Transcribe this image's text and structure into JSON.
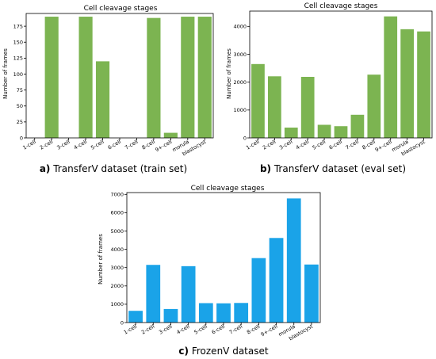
{
  "colors": {
    "green_bar": "#7cb451",
    "blue_bar": "#1aa3e8"
  },
  "captions": [
    {
      "letter": "a)",
      "text": " TransferV dataset (train set)"
    },
    {
      "letter": "b)",
      "text": " TransferV dataset (eval set)"
    },
    {
      "letter": "c)",
      "text": " FrozenV dataset"
    }
  ],
  "chart_data": [
    {
      "type": "bar",
      "title": "Cell cleavage stages",
      "xlabel": "",
      "ylabel": "Number of frames",
      "categories": [
        "1-cell",
        "2-cell",
        "3-cell",
        "4-cell",
        "5-cell",
        "6-cell",
        "7-cell",
        "8-cell",
        "9+-cell",
        "morula",
        "blastocyst"
      ],
      "values": [
        0,
        190,
        0,
        190,
        120,
        0,
        0,
        188,
        8,
        190,
        190
      ],
      "ylim": [
        0,
        195
      ],
      "yticks": [
        0,
        25,
        50,
        75,
        100,
        125,
        150,
        175
      ],
      "color": "#7cb451",
      "grid": false
    },
    {
      "type": "bar",
      "title": "Cell cleavage stages",
      "xlabel": "",
      "ylabel": "Number of frames",
      "categories": [
        "1-cell",
        "2-cell",
        "3-cell",
        "4-cell",
        "5-cell",
        "6-cell",
        "7-cell",
        "8-cell",
        "9+-cell",
        "morula",
        "blastocyst"
      ],
      "values": [
        2650,
        2210,
        370,
        2190,
        470,
        420,
        830,
        2270,
        4360,
        3900,
        3820
      ],
      "ylim": [
        0,
        4550
      ],
      "yticks": [
        0,
        1000,
        2000,
        3000,
        4000
      ],
      "color": "#7cb451",
      "grid": false
    },
    {
      "type": "bar",
      "title": "Cell cleavage stages",
      "xlabel": "",
      "ylabel": "Number of frames",
      "categories": [
        "1-cell",
        "2-cell",
        "3-cell",
        "4-cell",
        "5-cell",
        "6-cell",
        "7-cell",
        "8-cell",
        "9+-cell",
        "morula",
        "blastocyst"
      ],
      "values": [
        640,
        3150,
        740,
        3080,
        1060,
        1050,
        1070,
        3520,
        4620,
        6780,
        3170
      ],
      "ylim": [
        0,
        7100
      ],
      "yticks": [
        0,
        1000,
        2000,
        3000,
        4000,
        5000,
        6000,
        7000
      ],
      "color": "#1aa3e8",
      "grid": false
    }
  ]
}
